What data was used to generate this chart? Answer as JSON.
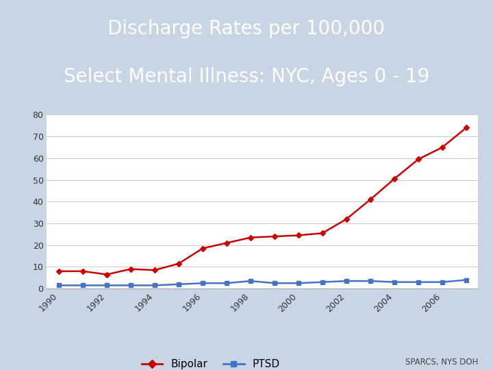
{
  "title_line1": "Discharge Rates per 100,000",
  "title_line2": "Select Mental Illness: NYC, Ages 0 - 19",
  "title_color": "#FFFFFF",
  "title_bg_dark": "#5a7aaa",
  "title_bg_light": "#c0cfe0",
  "chart_bg_color": "#FFFFFF",
  "outer_bg_color": "#c8d5e5",
  "years": [
    1990,
    1991,
    1992,
    1993,
    1994,
    1995,
    1996,
    1997,
    1998,
    1999,
    2000,
    2001,
    2002,
    2003,
    2004,
    2005,
    2006,
    2007
  ],
  "bipolar": [
    8,
    8,
    6.5,
    9,
    8.5,
    11.5,
    18.5,
    21,
    23.5,
    24,
    24.5,
    25.5,
    32,
    41,
    50.5,
    59.5,
    65,
    74
  ],
  "ptsd": [
    1.5,
    1.5,
    1.5,
    1.5,
    1.5,
    2,
    2.5,
    2.5,
    3.5,
    2.5,
    2.5,
    3,
    3.5,
    3.5,
    3,
    3,
    3,
    4
  ],
  "bipolar_color": "#CC0000",
  "ptsd_color": "#4472C4",
  "ylim": [
    0,
    80
  ],
  "yticks": [
    0,
    10,
    20,
    30,
    40,
    50,
    60,
    70,
    80
  ],
  "xtick_years": [
    1990,
    1992,
    1994,
    1996,
    1998,
    2000,
    2002,
    2004,
    2006
  ],
  "source_text": "SPARCS, NYS DOH",
  "legend_bipolar": "Bipolar",
  "legend_ptsd": "PTSD"
}
